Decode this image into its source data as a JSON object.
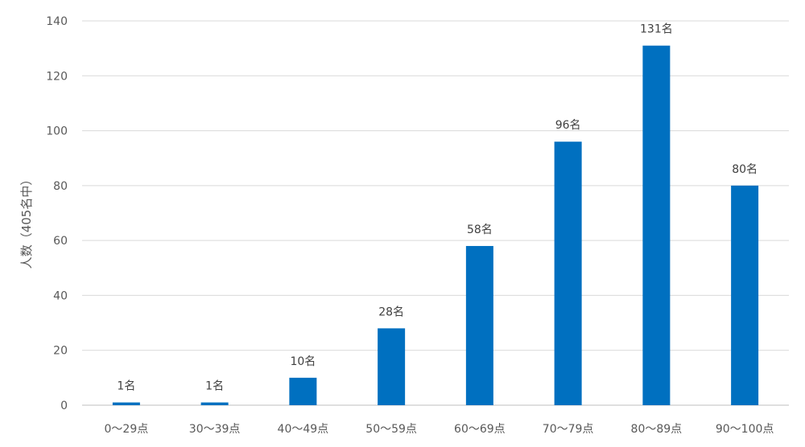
{
  "chart_data": {
    "type": "bar",
    "title": "",
    "xlabel": "",
    "ylabel": "人数（405名中）",
    "categories": [
      "0〜29点",
      "30〜39点",
      "40〜49点",
      "50〜59点",
      "60〜69点",
      "70〜79点",
      "80〜89点",
      "90〜100点"
    ],
    "values": [
      1,
      1,
      10,
      28,
      58,
      96,
      131,
      80
    ],
    "data_labels": [
      "1名",
      "1名",
      "10名",
      "28名",
      "58名",
      "96名",
      "131名",
      "80名"
    ],
    "yticks": [
      0,
      20,
      40,
      60,
      80,
      100,
      120,
      140
    ],
    "ylim": [
      0,
      140
    ],
    "grid": true,
    "legend": "none",
    "bar_color": "#0070C0"
  }
}
